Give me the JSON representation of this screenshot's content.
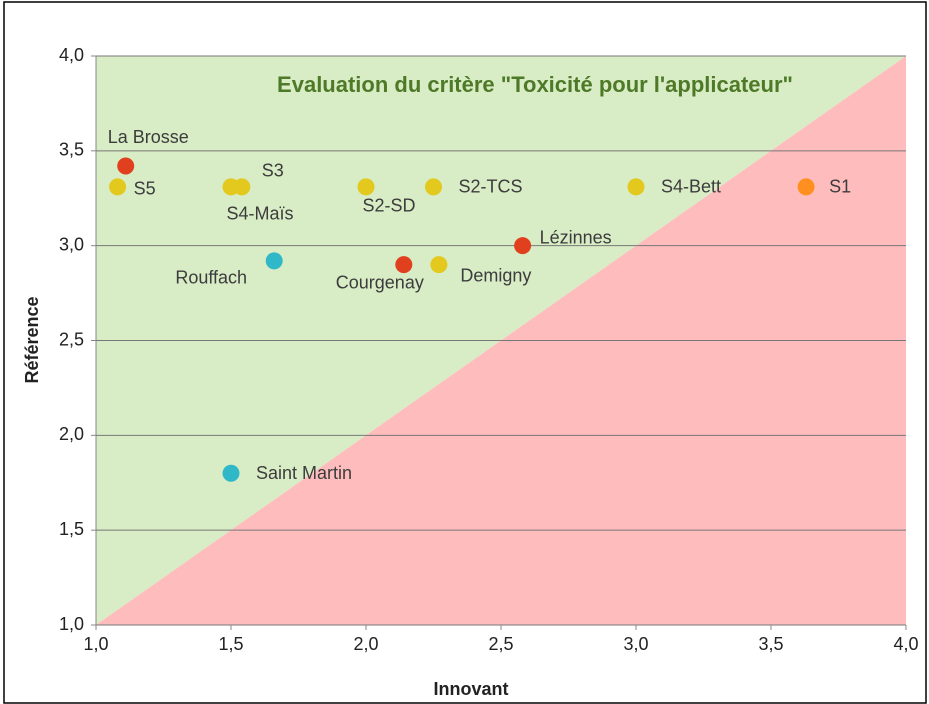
{
  "chart_data": {
    "type": "scatter",
    "title": "Evaluation du critère \"Toxicité pour l'applicateur\"",
    "xlabel": "Innovant",
    "ylabel": "Référence",
    "xlim": [
      1.0,
      4.0
    ],
    "ylim": [
      1.0,
      4.0
    ],
    "xticks": [
      {
        "value": 1.0,
        "label": "1,0"
      },
      {
        "value": 1.5,
        "label": "1,5"
      },
      {
        "value": 2.0,
        "label": "2,0"
      },
      {
        "value": 2.5,
        "label": "2,5"
      },
      {
        "value": 3.0,
        "label": "3,0"
      },
      {
        "value": 3.5,
        "label": "3,5"
      },
      {
        "value": 4.0,
        "label": "4,0"
      }
    ],
    "yticks": [
      {
        "value": 1.0,
        "label": "1,0"
      },
      {
        "value": 1.5,
        "label": "1,5"
      },
      {
        "value": 2.0,
        "label": "2,0"
      },
      {
        "value": 2.5,
        "label": "2,5"
      },
      {
        "value": 3.0,
        "label": "3,0"
      },
      {
        "value": 3.5,
        "label": "3,5"
      },
      {
        "value": 4.0,
        "label": "4,0"
      }
    ],
    "grid": true,
    "points": [
      {
        "label": "La Brosse",
        "x": 1.11,
        "y": 3.42,
        "color": "#e0401e"
      },
      {
        "label": "S5",
        "x": 1.08,
        "y": 3.31,
        "color": "#e3c81e"
      },
      {
        "label": "S4-Maïs",
        "x": 1.5,
        "y": 3.31,
        "color": "#e3c81e"
      },
      {
        "label": "S3",
        "x": 1.54,
        "y": 3.31,
        "color": "#e3c81e"
      },
      {
        "label": "S2-SD",
        "x": 2.0,
        "y": 3.31,
        "color": "#e3c81e"
      },
      {
        "label": "S2-TCS",
        "x": 2.25,
        "y": 3.31,
        "color": "#e3c81e"
      },
      {
        "label": "S4-Bett",
        "x": 3.0,
        "y": 3.31,
        "color": "#e3c81e"
      },
      {
        "label": "S1",
        "x": 3.63,
        "y": 3.31,
        "color": "#ff9020"
      },
      {
        "label": "Lézinnes",
        "x": 2.58,
        "y": 3.0,
        "color": "#e0401e"
      },
      {
        "label": "Courgenay",
        "x": 2.14,
        "y": 2.9,
        "color": "#e0401e"
      },
      {
        "label": "Demigny",
        "x": 2.27,
        "y": 2.9,
        "color": "#e3c81e"
      },
      {
        "label": "Rouffach",
        "x": 1.66,
        "y": 2.92,
        "color": "#30b8c8"
      },
      {
        "label": "Saint Martin",
        "x": 1.5,
        "y": 1.8,
        "color": "#30b8c8"
      }
    ]
  }
}
